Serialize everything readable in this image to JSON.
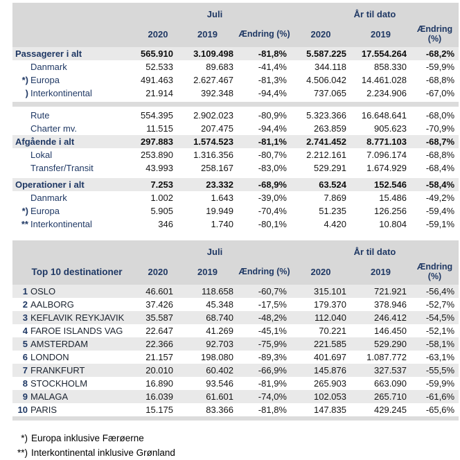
{
  "table1": {
    "header": {
      "group_month": "Juli",
      "group_ytd": "År til dato",
      "cols": [
        "2020",
        "2019",
        "Ændring (%)",
        "2020",
        "2019",
        "Ændring (%)"
      ]
    },
    "rows": [
      {
        "type": "total",
        "prefix": "",
        "label": "Passagerer i alt",
        "values": [
          "565.910",
          "3.109.498",
          "-81,8%",
          "5.587.225",
          "17.554.264",
          "-68,2%"
        ]
      },
      {
        "type": "sub",
        "prefix": "",
        "label": "Danmark",
        "values": [
          "52.533",
          "89.683",
          "-41,4%",
          "344.118",
          "858.330",
          "-59,9%"
        ]
      },
      {
        "type": "sub",
        "prefix": "*)",
        "label": "Europa",
        "values": [
          "491.463",
          "2.627.467",
          "-81,3%",
          "4.506.042",
          "14.461.028",
          "-68,8%"
        ]
      },
      {
        "type": "sub",
        "prefix": ")",
        "label": "Interkontinental",
        "values": [
          "21.914",
          "392.348",
          "-94,4%",
          "737.065",
          "2.234.906",
          "-67,0%"
        ]
      },
      {
        "type": "sep"
      },
      {
        "type": "sub",
        "prefix": "",
        "label": "Rute",
        "values": [
          "554.395",
          "2.902.023",
          "-80,9%",
          "5.323.366",
          "16.648.641",
          "-68,0%"
        ]
      },
      {
        "type": "sub",
        "prefix": "",
        "label": "Charter mv.",
        "values": [
          "11.515",
          "207.475",
          "-94,4%",
          "263.859",
          "905.623",
          "-70,9%"
        ]
      },
      {
        "type": "total",
        "prefix": "",
        "label": "Afgående i alt",
        "values": [
          "297.883",
          "1.574.523",
          "-81,1%",
          "2.741.452",
          "8.771.103",
          "-68,7%"
        ]
      },
      {
        "type": "sub",
        "prefix": "",
        "label": "Lokal",
        "values": [
          "253.890",
          "1.316.356",
          "-80,7%",
          "2.212.161",
          "7.096.174",
          "-68,8%"
        ]
      },
      {
        "type": "sub",
        "prefix": "",
        "label": "Transfer/Transit",
        "values": [
          "43.993",
          "258.167",
          "-83,0%",
          "529.291",
          "1.674.929",
          "-68,4%"
        ]
      },
      {
        "type": "gap"
      },
      {
        "type": "total",
        "prefix": "",
        "label": "Operationer i alt",
        "values": [
          "7.253",
          "23.332",
          "-68,9%",
          "63.524",
          "152.546",
          "-58,4%"
        ]
      },
      {
        "type": "sub",
        "prefix": "",
        "label": "Danmark",
        "values": [
          "1.002",
          "1.643",
          "-39,0%",
          "7.869",
          "15.486",
          "-49,2%"
        ]
      },
      {
        "type": "sub",
        "prefix": "*)",
        "label": "Europa",
        "values": [
          "5.905",
          "19.949",
          "-70,4%",
          "51.235",
          "126.256",
          "-59,4%"
        ]
      },
      {
        "type": "sub",
        "prefix": "**",
        "label": "Interkontinental",
        "values": [
          "346",
          "1.740",
          "-80,1%",
          "4.420",
          "10.804",
          "-59,1%"
        ]
      }
    ]
  },
  "table2": {
    "label": "Top 10 destinationer",
    "header": {
      "group_month": "Juli",
      "group_ytd": "År til dato",
      "cols": [
        "2020",
        "2019",
        "Ændring (%)",
        "2020",
        "2019",
        "Ændring (%)"
      ]
    },
    "rows": [
      {
        "rank": "1",
        "name": "OSLO",
        "values": [
          "46.601",
          "118.658",
          "-60,7%",
          "315.101",
          "721.921",
          "-56,4%"
        ]
      },
      {
        "rank": "2",
        "name": "AALBORG",
        "values": [
          "37.426",
          "45.348",
          "-17,5%",
          "179.370",
          "378.946",
          "-52,7%"
        ]
      },
      {
        "rank": "3",
        "name": "KEFLAVIK REYKJAVIK",
        "values": [
          "35.587",
          "68.740",
          "-48,2%",
          "112.040",
          "246.412",
          "-54,5%"
        ]
      },
      {
        "rank": "4",
        "name": "FAROE ISLANDS VAG",
        "values": [
          "22.647",
          "41.269",
          "-45,1%",
          "70.221",
          "146.450",
          "-52,1%"
        ]
      },
      {
        "rank": "5",
        "name": "AMSTERDAM",
        "values": [
          "22.366",
          "92.703",
          "-75,9%",
          "221.585",
          "529.290",
          "-58,1%"
        ]
      },
      {
        "rank": "6",
        "name": "LONDON",
        "values": [
          "21.157",
          "198.080",
          "-89,3%",
          "401.697",
          "1.087.772",
          "-63,1%"
        ]
      },
      {
        "rank": "7",
        "name": "FRANKFURT",
        "values": [
          "20.010",
          "60.402",
          "-66,9%",
          "145.876",
          "327.537",
          "-55,5%"
        ]
      },
      {
        "rank": "8",
        "name": "STOCKHOLM",
        "values": [
          "16.890",
          "93.546",
          "-81,9%",
          "265.903",
          "663.090",
          "-59,9%"
        ]
      },
      {
        "rank": "9",
        "name": "MALAGA",
        "values": [
          "16.039",
          "61.601",
          "-74,0%",
          "102.053",
          "265.710",
          "-61,6%"
        ]
      },
      {
        "rank": "10",
        "name": "PARIS",
        "values": [
          "15.175",
          "83.366",
          "-81,8%",
          "147.835",
          "429.245",
          "-65,6%"
        ]
      }
    ]
  },
  "footnotes": [
    {
      "marker": "*)",
      "text": "Europa inklusive Færøerne"
    },
    {
      "marker": "**)",
      "text": "Interkontinental inklusive Grønland"
    }
  ],
  "colors": {
    "accent_navy": "#1f3864",
    "header_bg": "#d8d8d8",
    "stripe_bg": "#e9e9e9"
  }
}
